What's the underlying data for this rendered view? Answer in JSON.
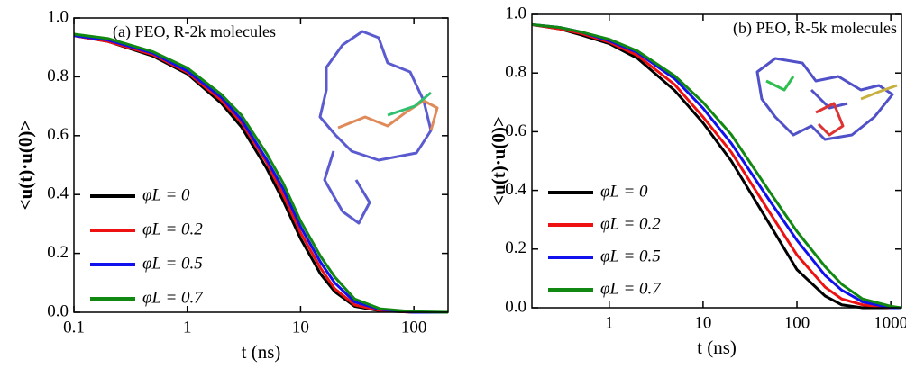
{
  "chart_data": [
    {
      "type": "line",
      "title": "(a) PEO, R-2k molecules",
      "xlabel": "t (ns)",
      "ylabel": "<u(t)·u(0)>",
      "log_x": true,
      "legend": "lower left",
      "x": [
        0.1,
        0.2,
        0.5,
        1,
        2,
        3,
        5,
        7,
        10,
        15,
        20,
        30,
        50,
        100,
        200
      ],
      "series": [
        {
          "name": "φL = 0",
          "color": "#000000",
          "values": [
            0.94,
            0.92,
            0.87,
            0.81,
            0.71,
            0.63,
            0.49,
            0.38,
            0.25,
            0.13,
            0.07,
            0.02,
            0.005,
            0,
            0
          ]
        },
        {
          "name": "φL = 0.2",
          "color": "#ee1111",
          "values": [
            0.94,
            0.92,
            0.875,
            0.815,
            0.72,
            0.645,
            0.51,
            0.4,
            0.27,
            0.15,
            0.08,
            0.025,
            0.006,
            0,
            0
          ]
        },
        {
          "name": "φL = 0.5",
          "color": "#1111ee",
          "values": [
            0.94,
            0.925,
            0.88,
            0.82,
            0.73,
            0.655,
            0.52,
            0.42,
            0.29,
            0.17,
            0.1,
            0.035,
            0.01,
            0,
            0
          ]
        },
        {
          "name": "φL = 0.7",
          "color": "#118811",
          "values": [
            0.945,
            0.93,
            0.885,
            0.83,
            0.74,
            0.67,
            0.54,
            0.44,
            0.31,
            0.19,
            0.12,
            0.045,
            0.012,
            0.002,
            0
          ]
        }
      ],
      "xlim": [
        0.1,
        200
      ],
      "xticks": [
        0.1,
        1,
        10,
        100
      ],
      "ylim": [
        0,
        1
      ],
      "yticks": [
        {
          "value": 0,
          "label": "0.0"
        },
        0.2,
        0.4,
        0.6,
        0.8,
        {
          "value": 1,
          "label": "1.0"
        }
      ]
    },
    {
      "type": "line",
      "title": "(b) PEO, R-5k molecules",
      "xlabel": "t (ns)",
      "ylabel": "<u(t)·u(0)>",
      "log_x": true,
      "legend": "lower left",
      "x": [
        0.15,
        0.3,
        0.5,
        1,
        2,
        5,
        10,
        20,
        50,
        100,
        200,
        300,
        500,
        1000,
        1300
      ],
      "series": [
        {
          "name": "φL = 0",
          "color": "#000000",
          "values": [
            0.965,
            0.95,
            0.93,
            0.9,
            0.85,
            0.74,
            0.63,
            0.5,
            0.29,
            0.13,
            0.04,
            0.01,
            0,
            0,
            0
          ]
        },
        {
          "name": "φL = 0.2",
          "color": "#ee1111",
          "values": [
            0.965,
            0.95,
            0.935,
            0.905,
            0.86,
            0.76,
            0.65,
            0.53,
            0.33,
            0.18,
            0.07,
            0.03,
            0.01,
            0,
            0
          ]
        },
        {
          "name": "φL = 0.5",
          "color": "#1111ee",
          "values": [
            0.965,
            0.955,
            0.94,
            0.91,
            0.87,
            0.78,
            0.68,
            0.56,
            0.37,
            0.23,
            0.11,
            0.06,
            0.02,
            0,
            0
          ]
        },
        {
          "name": "φL = 0.7",
          "color": "#118811",
          "values": [
            0.965,
            0.955,
            0.94,
            0.915,
            0.875,
            0.79,
            0.7,
            0.59,
            0.4,
            0.26,
            0.14,
            0.08,
            0.03,
            0.005,
            0
          ]
        }
      ],
      "xlim": [
        0.15,
        1300
      ],
      "xticks": [
        1,
        10,
        100,
        1000
      ],
      "ylim": [
        0,
        1
      ],
      "yticks": [
        {
          "value": 0,
          "label": "0.0"
        },
        0.2,
        0.4,
        0.6,
        0.8,
        {
          "value": 1,
          "label": "1.0"
        }
      ]
    }
  ]
}
